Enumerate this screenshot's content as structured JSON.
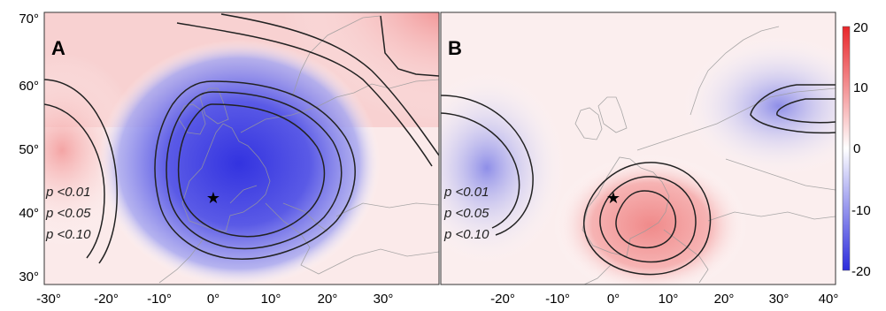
{
  "panels": [
    {
      "letter": "A",
      "significance_labels": [
        "p <0.01",
        "p <0.05",
        "p <0.10"
      ],
      "x_ticks": [
        "-30°",
        "-20°",
        "-10°",
        "0°",
        "10°",
        "20°",
        "30°"
      ],
      "y_ticks": [
        "70°",
        "60°",
        "50°",
        "40°",
        "30°"
      ],
      "star_location": {
        "lon": 0,
        "lat": 43
      }
    },
    {
      "letter": "B",
      "significance_labels": [
        "p <0.01",
        "p <0.05",
        "p <0.10"
      ],
      "x_ticks": [
        "-20°",
        "-10°",
        "0°",
        "10°",
        "20°",
        "30°",
        "40°"
      ],
      "star_location": {
        "lon": 0,
        "lat": 43
      }
    }
  ],
  "colorbar": {
    "ticks": [
      "20",
      "10",
      "0",
      "-10",
      "-20"
    ],
    "positive_color": "#e8262a",
    "neutral_color": "#ffffff",
    "negative_color": "#2b2bdc"
  },
  "colors": {
    "contour": "#222222",
    "coastline": "#9a9a9a",
    "star": "#000000"
  }
}
